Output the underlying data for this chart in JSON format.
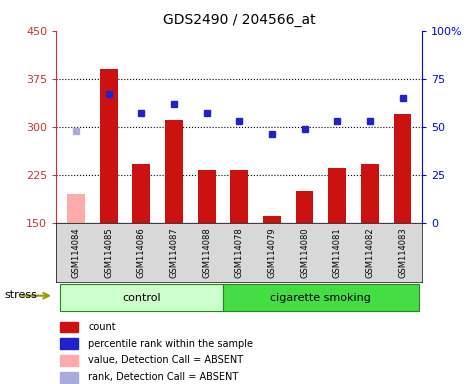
{
  "title": "GDS2490 / 204566_at",
  "samples": [
    "GSM114084",
    "GSM114085",
    "GSM114086",
    "GSM114087",
    "GSM114088",
    "GSM114078",
    "GSM114079",
    "GSM114080",
    "GSM114081",
    "GSM114082",
    "GSM114083"
  ],
  "bar_values": [
    195,
    390,
    242,
    310,
    232,
    232,
    160,
    200,
    236,
    242,
    320
  ],
  "bar_absent": [
    true,
    false,
    false,
    false,
    false,
    false,
    false,
    false,
    false,
    false,
    false
  ],
  "rank_values": [
    48,
    67,
    57,
    62,
    57,
    53,
    46,
    49,
    53,
    53,
    65
  ],
  "rank_absent": [
    true,
    false,
    false,
    false,
    false,
    false,
    false,
    false,
    false,
    false,
    false
  ],
  "ylim_left": [
    150,
    450
  ],
  "ylim_right": [
    0,
    100
  ],
  "yticks_left": [
    150,
    225,
    300,
    375,
    450
  ],
  "yticks_right": [
    0,
    25,
    50,
    75,
    100
  ],
  "groups": [
    {
      "label": "control",
      "indices": [
        0,
        1,
        2,
        3,
        4
      ],
      "color": "#ccffcc"
    },
    {
      "label": "cigarette smoking",
      "indices": [
        5,
        6,
        7,
        8,
        9,
        10
      ],
      "color": "#44dd44"
    }
  ],
  "bar_color_present": "#cc1111",
  "bar_color_absent": "#ffaaaa",
  "rank_color_present": "#2222cc",
  "rank_color_absent": "#aaaadd",
  "stress_label": "stress",
  "bg_label_color": "#d8d8d8",
  "legend_items": [
    {
      "color": "#cc1111",
      "label": "count"
    },
    {
      "color": "#2222cc",
      "label": "percentile rank within the sample"
    },
    {
      "color": "#ffaaaa",
      "label": "value, Detection Call = ABSENT"
    },
    {
      "color": "#aaaadd",
      "label": "rank, Detection Call = ABSENT"
    }
  ]
}
